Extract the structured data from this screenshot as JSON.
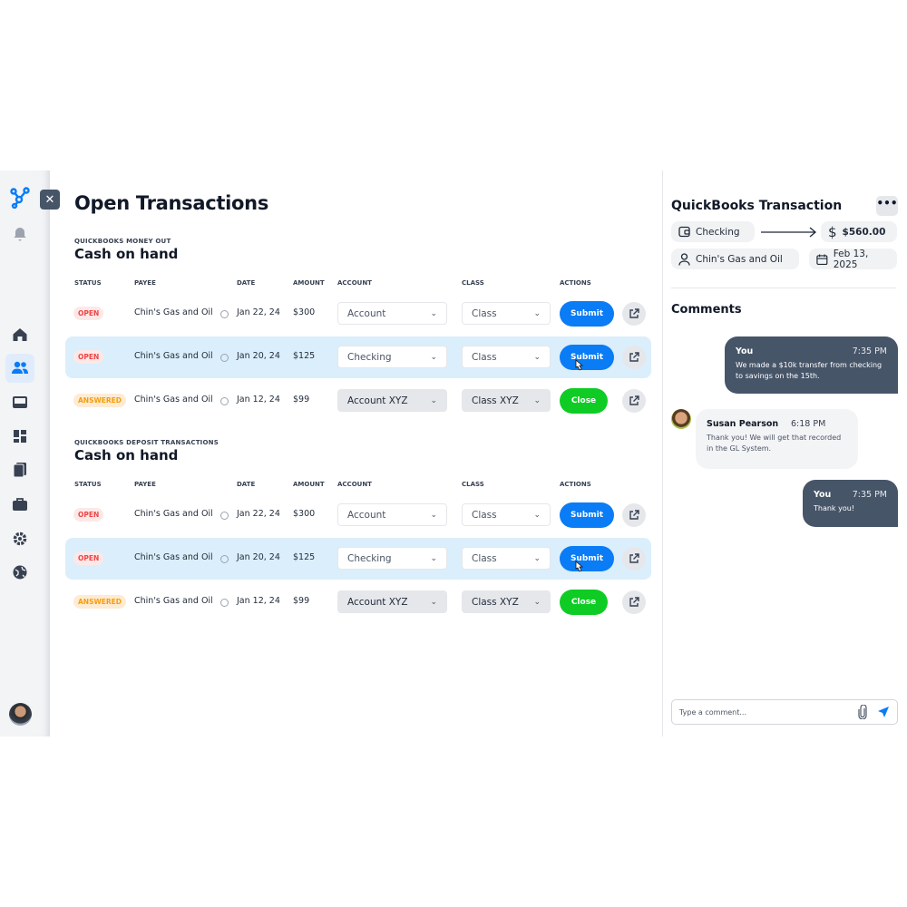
{
  "title": "Open Transactions",
  "columns": {
    "status": "STATUS",
    "payee": "PAYEE",
    "date": "DATE",
    "amount": "AMOUNT",
    "account": "ACCOUNT",
    "class": "CLASS",
    "actions": "ACTIONS"
  },
  "sections": [
    {
      "label": "QUICKBOOKS MONEY OUT",
      "title": "Cash on hand",
      "rows": [
        {
          "status": "OPEN",
          "payee": "Chin's Gas and Oil",
          "date": "Jan 22, 24",
          "amount": "$300",
          "account": "Account",
          "class": "Class",
          "action": "Submit",
          "highlight": false,
          "filled": false
        },
        {
          "status": "OPEN",
          "payee": "Chin's Gas and Oil",
          "date": "Jan 20, 24",
          "amount": "$125",
          "account": "Checking",
          "class": "Class",
          "action": "Submit",
          "highlight": true,
          "filled": false
        },
        {
          "status": "ANSWERED",
          "payee": "Chin's Gas and Oil",
          "date": "Jan 12, 24",
          "amount": "$99",
          "account": "Account XYZ",
          "class": "Class XYZ",
          "action": "Close",
          "highlight": false,
          "filled": true
        }
      ]
    },
    {
      "label": "QUICKBOOKS DEPOSIT TRANSACTIONS",
      "title": "Cash on hand",
      "rows": [
        {
          "status": "OPEN",
          "payee": "Chin's Gas and Oil",
          "date": "Jan 22, 24",
          "amount": "$300",
          "account": "Account",
          "class": "Class",
          "action": "Submit",
          "highlight": false,
          "filled": false
        },
        {
          "status": "OPEN",
          "payee": "Chin's Gas and Oil",
          "date": "Jan 20, 24",
          "amount": "$125",
          "account": "Checking",
          "class": "Class",
          "action": "Submit",
          "highlight": true,
          "filled": false
        },
        {
          "status": "ANSWERED",
          "payee": "Chin's Gas and Oil",
          "date": "Jan 12, 24",
          "amount": "$99",
          "account": "Account XYZ",
          "class": "Class XYZ",
          "action": "Close",
          "highlight": false,
          "filled": true
        }
      ]
    }
  ],
  "panel": {
    "title": "QuickBooks Transaction",
    "more": "•••",
    "from_account": "Checking",
    "amount": "$560.00",
    "payee": "Chin's Gas and Oil",
    "date": "Feb 13, 2025",
    "comments_title": "Comments",
    "comments": [
      {
        "author": "You",
        "time": "7:35 PM",
        "text": "We made a $10k transfer from checking to savings on the 15th."
      },
      {
        "author": "Susan Pearson",
        "time": "6:18 PM",
        "text": "Thank you! We will get that recorded in the GL System."
      },
      {
        "author": "You",
        "time": "7:35 PM",
        "text": "Thank you!"
      }
    ],
    "comment_placeholder": "Type a comment..."
  },
  "colors": {
    "accent": "#0a7cf5",
    "success": "#0fcc24",
    "open": "#ef4444",
    "answered": "#f59e0b",
    "dark_bubble": "#475569"
  },
  "icons": [
    "logo-icon",
    "bell-icon",
    "home-icon",
    "users-icon",
    "inbox-icon",
    "dashboard-icon",
    "documents-icon",
    "briefcase-icon",
    "gear-icon",
    "globe-icon",
    "wallet-icon",
    "dollar-icon",
    "user-icon",
    "calendar-icon",
    "paperclip-icon",
    "send-icon",
    "external-link-icon",
    "info-icon",
    "chevron-down-icon"
  ]
}
